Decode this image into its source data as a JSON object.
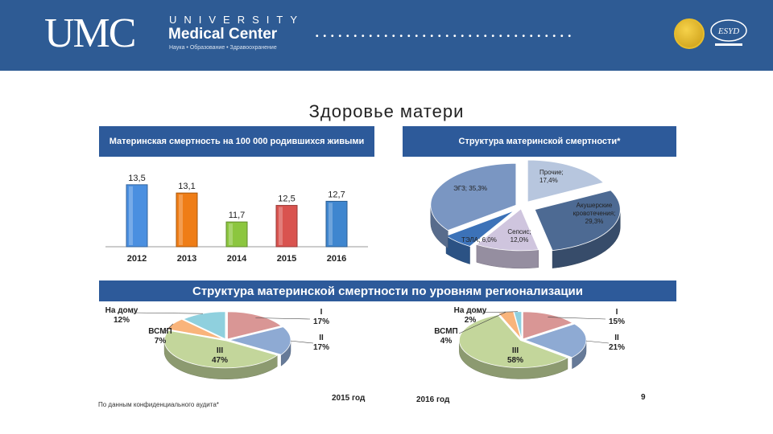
{
  "header": {
    "logo_text": "UMC",
    "university": "UNIVERSITY",
    "center": "Medical Center",
    "tagline": "Наука • Образование • Здравоохранение",
    "badge_label": "ESYD"
  },
  "slide_title": "Здоровье матери",
  "colors": {
    "header_bg": "#2e5b94",
    "panel_head_bg": "#2d5a9a"
  },
  "chart_data": [
    {
      "type": "bar",
      "title": "Материнская смертность на 100 000 родившихся живыми",
      "categories": [
        "2012",
        "2013",
        "2014",
        "2015",
        "2016"
      ],
      "values": [
        13.5,
        13.1,
        11.7,
        12.5,
        12.7
      ],
      "value_labels": [
        "13,5",
        "13,1",
        "11,7",
        "12,5",
        "12,7"
      ],
      "bar_colors": [
        "#4a8fe0",
        "#ef7d16",
        "#8cc63f",
        "#d9534f",
        "#3f86cf"
      ],
      "ylim": [
        10.5,
        14
      ]
    },
    {
      "type": "pie",
      "title": "Структура материнской смертности*",
      "slices": [
        {
          "label": "Прочие; 17,4%",
          "value": 17.4,
          "color": "#b7c6de"
        },
        {
          "label": "Акушерские кровотечения; 29,3%",
          "value": 29.3,
          "color": "#4d6a93"
        },
        {
          "label": "Сепсис; 12,0%",
          "value": 12.0,
          "color": "#cfc5de"
        },
        {
          "label": "ТЭЛА; 6,0%",
          "value": 6.0,
          "color": "#3c72b8"
        },
        {
          "label": "ЭГЗ; 35,3%",
          "value": 35.3,
          "color": "#7a96c2"
        }
      ]
    },
    {
      "type": "pie",
      "title": "Структура материнской смертности по уровням регионализации",
      "year_label": "2015 год",
      "slices": [
        {
          "label": "I",
          "pct": "17%",
          "value": 17,
          "color": "#d99695"
        },
        {
          "label": "II",
          "pct": "17%",
          "value": 17,
          "color": "#8eaad3"
        },
        {
          "label": "III",
          "pct": "47%",
          "value": 47,
          "color": "#c3d69b"
        },
        {
          "label": "ВСМП",
          "pct": "7%",
          "value": 7,
          "color": "#f9b47b"
        },
        {
          "label": "На дому",
          "pct": "12%",
          "value": 12,
          "color": "#8fd0de"
        }
      ]
    },
    {
      "type": "pie",
      "year_label": "2016 год",
      "slices": [
        {
          "label": "I",
          "pct": "15%",
          "value": 15,
          "color": "#d99695"
        },
        {
          "label": "II",
          "pct": "21%",
          "value": 21,
          "color": "#8eaad3"
        },
        {
          "label": "III",
          "pct": "58%",
          "value": 58,
          "color": "#c3d69b"
        },
        {
          "label": "ВСМП",
          "pct": "4%",
          "value": 4,
          "color": "#f9b47b"
        },
        {
          "label": "На дому",
          "pct": "2%",
          "value": 2,
          "color": "#8fd0de"
        }
      ]
    }
  ],
  "footnote": "По данным конфиденциального аудита*",
  "page_number": "9"
}
